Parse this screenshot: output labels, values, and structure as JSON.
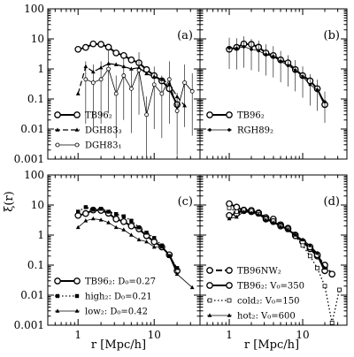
{
  "figure": {
    "ylabel": "ξ(r)",
    "xlabel": "r   [Mpc/h]"
  },
  "chart_data": [
    {
      "type": "line",
      "panel_label": "(a)",
      "xscale": "log",
      "yscale": "log",
      "xlim": [
        0.4,
        40
      ],
      "ylim": [
        0.001,
        100
      ],
      "x_ticks": [
        "1",
        "10"
      ],
      "y_ticks": [
        "0.001",
        "0.01",
        "0.1",
        "1",
        "10",
        "100"
      ],
      "show_y_tick_labels": true,
      "show_x_tick_labels": false,
      "legend": "bottom-left",
      "series": [
        {
          "name": "TB96₂",
          "style": "solid-thick",
          "marker": "open-circle",
          "x": [
            1.0,
            1.26,
            1.58,
            2.0,
            2.51,
            3.16,
            3.98,
            5.01,
            6.31,
            7.94,
            10.0,
            12.6,
            15.8,
            20.0
          ],
          "y": [
            4.5,
            5.2,
            6.8,
            6.6,
            5.3,
            3.4,
            2.8,
            2.0,
            1.6,
            0.95,
            0.6,
            0.4,
            0.22,
            0.065
          ]
        },
        {
          "name": "DGH83₃",
          "style": "dashed",
          "marker": "filled-triangle",
          "x": [
            1.0,
            1.26,
            1.58,
            2.0,
            2.51,
            3.16,
            3.98,
            5.01,
            6.31,
            7.94,
            10.0,
            12.6,
            15.8,
            20.0,
            25.1
          ],
          "y": [
            0.15,
            1.2,
            0.8,
            1.1,
            1.5,
            1.4,
            1.2,
            1.0,
            1.1,
            0.7,
            0.55,
            0.45,
            0.32,
            0.12,
            0.06
          ]
        },
        {
          "name": "DGH83₁",
          "style": "solid-thin",
          "marker": "open-circle-small",
          "x": [
            1.26,
            1.58,
            2.0,
            2.51,
            3.16,
            3.98,
            5.01,
            6.31,
            7.94,
            10.0,
            12.6,
            15.8,
            20.0,
            25.1,
            31.6
          ],
          "y": [
            0.45,
            0.35,
            0.45,
            1.0,
            0.15,
            0.6,
            0.22,
            0.9,
            0.03,
            0.3,
            0.15,
            0.45,
            0.04,
            0.35,
            0.18
          ]
        }
      ]
    },
    {
      "type": "line",
      "panel_label": "(b)",
      "xscale": "log",
      "yscale": "log",
      "xlim": [
        0.4,
        40
      ],
      "ylim": [
        0.001,
        100
      ],
      "x_ticks": [
        "1",
        "10"
      ],
      "y_ticks": [
        "0.001",
        "0.01",
        "0.1",
        "1",
        "10",
        "100"
      ],
      "show_y_tick_labels": false,
      "show_x_tick_labels": false,
      "legend": "bottom-left",
      "series": [
        {
          "name": "TB96₂",
          "style": "solid-thick",
          "marker": "open-circle",
          "x": [
            1.0,
            1.26,
            1.58,
            2.0,
            2.51,
            3.16,
            3.98,
            5.01,
            6.31,
            7.94,
            10.0,
            12.6,
            15.8,
            20.0
          ],
          "y": [
            4.5,
            5.2,
            6.8,
            6.6,
            5.3,
            3.4,
            2.8,
            2.0,
            1.6,
            0.95,
            0.6,
            0.4,
            0.22,
            0.065
          ]
        },
        {
          "name": "RGH89₂",
          "style": "solid-thin",
          "marker": "filled-dot",
          "x": [
            1.0,
            1.26,
            1.58,
            2.0,
            2.51,
            3.16,
            3.98,
            5.01,
            6.31,
            7.94,
            10.0,
            12.6,
            15.8,
            20.0
          ],
          "y": [
            5.0,
            4.8,
            5.5,
            4.5,
            4.0,
            3.0,
            2.6,
            1.8,
            1.3,
            0.9,
            0.55,
            0.3,
            0.2,
            0.08
          ]
        }
      ]
    },
    {
      "type": "line",
      "panel_label": "(c)",
      "xscale": "log",
      "yscale": "log",
      "xlim": [
        0.4,
        40
      ],
      "ylim": [
        0.001,
        100
      ],
      "x_ticks": [
        "1",
        "10"
      ],
      "y_ticks": [
        "0.001",
        "0.01",
        "0.1",
        "1",
        "10",
        "100"
      ],
      "show_y_tick_labels": true,
      "show_x_tick_labels": true,
      "legend": "bottom-left",
      "series": [
        {
          "name": "TB96₂: D₀=0.27",
          "style": "solid-thick",
          "marker": "open-circle",
          "x": [
            1.0,
            1.26,
            1.58,
            2.0,
            2.51,
            3.16,
            3.98,
            5.01,
            6.31,
            7.94,
            10.0,
            12.6,
            15.8,
            20.0
          ],
          "y": [
            4.5,
            5.2,
            6.8,
            6.6,
            5.3,
            3.4,
            2.8,
            2.0,
            1.6,
            0.95,
            0.6,
            0.4,
            0.22,
            0.065
          ]
        },
        {
          "name": "high₂: D₀=0.21",
          "style": "dotted",
          "marker": "filled-square",
          "x": [
            1.0,
            1.26,
            1.58,
            2.0,
            2.51,
            3.16,
            3.98,
            5.01,
            6.31,
            7.94,
            10.0,
            12.6,
            15.8,
            20.0
          ],
          "y": [
            6.0,
            8.5,
            7.0,
            7.5,
            6.0,
            5.0,
            4.2,
            3.0,
            1.8,
            1.2,
            0.8,
            0.45,
            0.2,
            0.08
          ]
        },
        {
          "name": "low₂: D₀=0.42",
          "style": "solid-thin",
          "marker": "filled-triangle",
          "x": [
            1.0,
            1.26,
            1.58,
            2.0,
            2.51,
            3.16,
            3.98,
            5.01,
            6.31,
            7.94,
            10.0,
            12.6,
            15.8,
            20.0,
            31.6
          ],
          "y": [
            1.8,
            3.0,
            3.5,
            3.2,
            2.6,
            1.8,
            1.5,
            1.0,
            0.7,
            0.6,
            0.4,
            0.4,
            0.2,
            0.05,
            0.018
          ]
        }
      ]
    },
    {
      "type": "line",
      "panel_label": "(d)",
      "xscale": "log",
      "yscale": "log",
      "xlim": [
        0.4,
        40
      ],
      "ylim": [
        0.001,
        100
      ],
      "x_ticks": [
        "1",
        "10"
      ],
      "y_ticks": [
        "0.001",
        "0.01",
        "0.1",
        "1",
        "10",
        "100"
      ],
      "show_y_tick_labels": false,
      "show_x_tick_labels": true,
      "legend": "bottom-left",
      "series": [
        {
          "name": "TB96NW₂",
          "style": "dashed-thick",
          "marker": "open-circle",
          "x": [
            1.0,
            1.26,
            1.58,
            2.0,
            2.51,
            3.16,
            3.98,
            5.01,
            6.31,
            7.94,
            10.0,
            12.6,
            15.8,
            20.0,
            25.1
          ],
          "y": [
            11.0,
            8.5,
            6.5,
            6.0,
            5.5,
            3.8,
            3.4,
            2.2,
            1.7,
            1.0,
            0.6,
            0.35,
            0.2,
            0.1,
            0.05
          ]
        },
        {
          "name": "TB96₂: V₀=350",
          "style": "solid-thick",
          "marker": "open-circle",
          "x": [
            1.0,
            1.26,
            1.58,
            2.0,
            2.51,
            3.16,
            3.98,
            5.01,
            6.31,
            7.94,
            10.0,
            12.6,
            15.8,
            20.0
          ],
          "y": [
            4.5,
            5.2,
            6.8,
            6.6,
            5.3,
            3.4,
            2.8,
            2.0,
            1.6,
            0.95,
            0.6,
            0.4,
            0.22,
            0.065
          ]
        },
        {
          "name": "cold₂: V₀=150",
          "style": "dotted",
          "marker": "open-square-small",
          "x": [
            1.0,
            1.26,
            1.58,
            2.0,
            2.51,
            3.16,
            3.98,
            5.01,
            6.31,
            7.94,
            10.0,
            12.6,
            15.8,
            20.0,
            25.1,
            31.6
          ],
          "y": [
            8.0,
            6.0,
            7.0,
            6.5,
            5.0,
            3.5,
            3.0,
            2.0,
            1.5,
            0.9,
            0.45,
            0.2,
            0.08,
            0.02,
            0.0012,
            0.015
          ]
        },
        {
          "name": "hot₂: V₀=600",
          "style": "solid-thin",
          "marker": "filled-triangle",
          "x": [
            1.0,
            1.26,
            1.58,
            2.0,
            2.51,
            3.16,
            3.98,
            5.01,
            6.31,
            7.94,
            10.0,
            12.6,
            15.8,
            20.0
          ],
          "y": [
            3.5,
            4.0,
            6.0,
            5.5,
            4.8,
            3.2,
            2.6,
            1.9,
            1.5,
            1.0,
            0.7,
            0.45,
            0.25,
            0.08
          ]
        }
      ]
    }
  ]
}
